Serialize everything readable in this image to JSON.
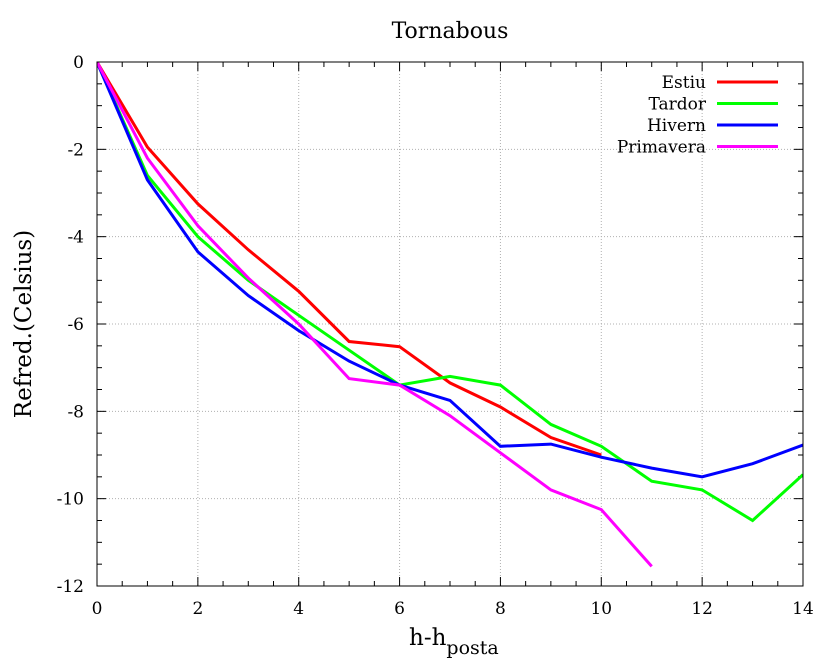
{
  "chart_data": {
    "type": "line",
    "title": "Tornabous",
    "xlabel_main": "h-h",
    "xlabel_sub": "posta",
    "ylabel": "Refred.(Celsius)",
    "xlim": [
      0,
      14
    ],
    "ylim": [
      -12,
      0
    ],
    "xticks": [
      "0",
      "2",
      "4",
      "6",
      "8",
      "10",
      "12",
      "14"
    ],
    "yticks": [
      "0",
      "-2",
      "-4",
      "-6",
      "-8",
      "-10",
      "-12"
    ],
    "grid": true,
    "legend_position": "top-right",
    "series": [
      {
        "name": "Estiu",
        "color": "#ff0000",
        "x": [
          0,
          1,
          2,
          3,
          4,
          5,
          6,
          7,
          8,
          9,
          10
        ],
        "y": [
          0,
          -1.95,
          -3.25,
          -4.3,
          -5.25,
          -6.4,
          -6.52,
          -7.35,
          -7.9,
          -8.6,
          -9.0
        ]
      },
      {
        "name": "Tardor",
        "color": "#00ff00",
        "x": [
          0,
          1,
          2,
          3,
          4,
          5,
          6,
          7,
          8,
          9,
          10,
          11,
          12,
          13,
          14
        ],
        "y": [
          0,
          -2.6,
          -4.0,
          -5.0,
          -5.8,
          -6.6,
          -7.4,
          -7.2,
          -7.4,
          -8.3,
          -8.8,
          -9.6,
          -9.8,
          -10.5,
          -9.45
        ]
      },
      {
        "name": "Hivern",
        "color": "#0000ff",
        "x": [
          0,
          1,
          2,
          3,
          4,
          5,
          6,
          7,
          8,
          9,
          10,
          11,
          12,
          13,
          14
        ],
        "y": [
          0,
          -2.7,
          -4.35,
          -5.35,
          -6.15,
          -6.85,
          -7.4,
          -7.75,
          -8.8,
          -8.75,
          -9.05,
          -9.3,
          -9.5,
          -9.2,
          -8.77
        ]
      },
      {
        "name": "Primavera",
        "color": "#ff00ff",
        "x": [
          0,
          1,
          2,
          3,
          4,
          5,
          6,
          7,
          8,
          9,
          10,
          11
        ],
        "y": [
          0,
          -2.2,
          -3.75,
          -4.95,
          -6.0,
          -7.25,
          -7.4,
          -8.1,
          -8.95,
          -9.8,
          -10.25,
          -11.55
        ]
      }
    ]
  }
}
